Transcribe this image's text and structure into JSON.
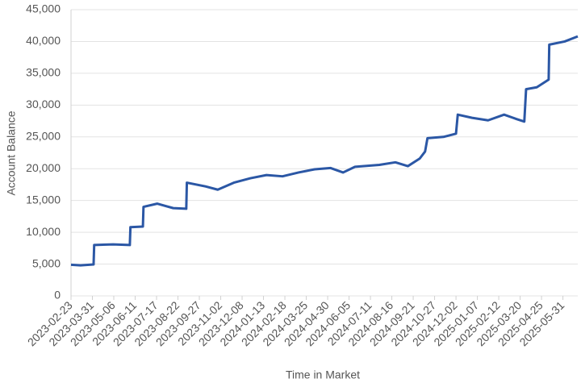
{
  "chart_data": {
    "type": "line",
    "x_label": "Time in Market",
    "y_label": "Account Balance",
    "x": [
      "2023-02-23",
      "2023-03-11",
      "2023-04-02",
      "2023-04-03",
      "2023-05-05",
      "2023-06-02",
      "2023-06-03",
      "2023-06-24",
      "2023-06-25",
      "2023-07-18",
      "2023-08-14",
      "2023-09-05",
      "2023-09-06",
      "2023-10-08",
      "2023-10-28",
      "2023-11-24",
      "2023-12-22",
      "2024-01-18",
      "2024-02-14",
      "2024-03-12",
      "2024-04-08",
      "2024-05-05",
      "2024-05-26",
      "2024-06-15",
      "2024-07-26",
      "2024-08-22",
      "2024-09-12",
      "2024-10-02",
      "2024-10-11",
      "2024-10-15",
      "2024-11-11",
      "2024-12-02",
      "2024-12-05",
      "2024-12-29",
      "2025-01-25",
      "2025-02-21",
      "2025-03-14",
      "2025-03-27",
      "2025-03-30",
      "2025-04-17",
      "2025-05-07",
      "2025-05-08",
      "2025-06-03",
      "2025-06-25"
    ],
    "series": [
      {
        "name": "Account Balance",
        "color": "#2b57a5",
        "values": [
          4900,
          4800,
          4950,
          8000,
          8100,
          8000,
          10800,
          10900,
          14000,
          14500,
          13800,
          13700,
          17800,
          17200,
          16700,
          17800,
          18500,
          19000,
          18800,
          19400,
          19900,
          20100,
          19400,
          20300,
          20600,
          21000,
          20400,
          21600,
          22700,
          24800,
          25000,
          25500,
          28500,
          28000,
          27600,
          28500,
          27800,
          27400,
          32500,
          32800,
          34000,
          39500,
          40000,
          40800
        ]
      }
    ],
    "xlim": [
      "2023-02-23",
      "2025-06-25"
    ],
    "xticks": [
      "2023-02-23",
      "2023-03-31",
      "2023-05-06",
      "2023-06-11",
      "2023-07-17",
      "2023-08-22",
      "2023-09-27",
      "2023-11-02",
      "2023-12-08",
      "2024-01-13",
      "2024-02-18",
      "2024-03-25",
      "2024-04-30",
      "2024-06-05",
      "2024-07-11",
      "2024-08-16",
      "2024-09-21",
      "2024-10-27",
      "2024-12-02",
      "2025-01-07",
      "2025-02-12",
      "2025-03-20",
      "2025-04-25",
      "2025-05-31"
    ],
    "ylim": [
      0,
      45000
    ],
    "yticks": [
      0,
      {
        "value": 5000,
        "label": "5,000"
      },
      {
        "value": 10000,
        "label": "10,000"
      },
      {
        "value": 15000,
        "label": "15,000"
      },
      {
        "value": 20000,
        "label": "20,000"
      },
      {
        "value": 25000,
        "label": "25,000"
      },
      {
        "value": 30000,
        "label": "30,000"
      },
      {
        "value": 35000,
        "label": "35,000"
      },
      {
        "value": 40000,
        "label": "40,000"
      },
      {
        "value": 45000,
        "label": "45,000"
      }
    ],
    "grid": true
  }
}
